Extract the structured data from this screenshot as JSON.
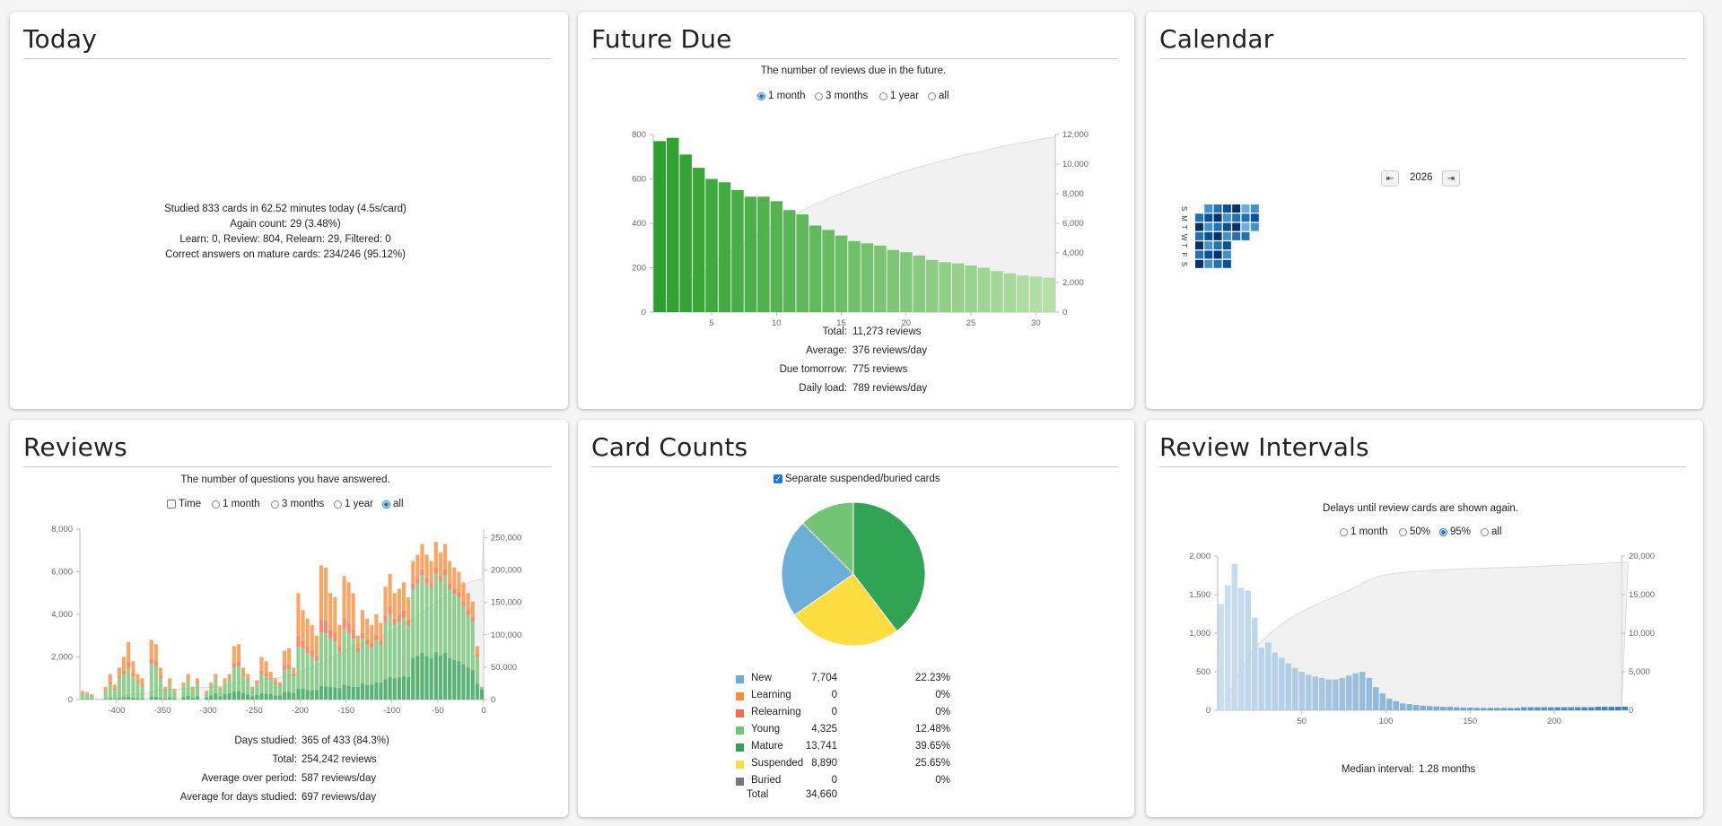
{
  "today": {
    "title": "Today",
    "lines": [
      "Studied 833 cards in 62.52 minutes today (4.5s/card)",
      "Again count: 29 (3.48%)",
      "Learn: 0, Review: 804, Relearn: 29, Filtered: 0",
      "Correct answers on mature cards: 234/246 (95.12%)"
    ]
  },
  "future_due": {
    "title": "Future Due",
    "subtitle": "The number of reviews due in the future.",
    "options": [
      "1 month",
      "3 months",
      "1 year",
      "all"
    ],
    "selected": 0,
    "stats": [
      {
        "label": "Total:",
        "value": "11,273 reviews"
      },
      {
        "label": "Average:",
        "value": "376 reviews/day"
      },
      {
        "label": "Due tomorrow:",
        "value": "775 reviews"
      },
      {
        "label": "Daily load:",
        "value": "789 reviews/day"
      }
    ]
  },
  "calendar": {
    "title": "Calendar",
    "year": "2026",
    "prev_icon": "arrow-left-bar",
    "next_icon": "arrow-right-bar",
    "weekday_labels": [
      "S",
      "M",
      "T",
      "W",
      "T",
      "F",
      "S"
    ]
  },
  "reviews": {
    "title": "Reviews",
    "subtitle": "The number of questions you have answered.",
    "time_label": "Time",
    "options": [
      "1 month",
      "3 months",
      "1 year",
      "all"
    ],
    "selected": 3,
    "stats": [
      {
        "label": "Days studied:",
        "value": "365 of 433 (84.3%)"
      },
      {
        "label": "Total:",
        "value": "254,242 reviews"
      },
      {
        "label": "Average over period:",
        "value": "587 reviews/day"
      },
      {
        "label": "Average for days studied:",
        "value": "697 reviews/day"
      }
    ]
  },
  "card_counts": {
    "title": "Card Counts",
    "checkbox_label": "Separate suspended/buried cards",
    "checked": true,
    "rows": [
      {
        "name": "New",
        "count": "7,704",
        "pct": "22.23%",
        "color": "#6baed6"
      },
      {
        "name": "Learning",
        "count": "0",
        "pct": "0%",
        "color": "#fd8d3c"
      },
      {
        "name": "Relearning",
        "count": "0",
        "pct": "0%",
        "color": "#fb6a4a"
      },
      {
        "name": "Young",
        "count": "4,325",
        "pct": "12.48%",
        "color": "#74c476"
      },
      {
        "name": "Mature",
        "count": "13,741",
        "pct": "39.65%",
        "color": "#31a354"
      },
      {
        "name": "Suspended",
        "count": "8,890",
        "pct": "25.65%",
        "color": "#fddd3f"
      },
      {
        "name": "Buried",
        "count": "0",
        "pct": "0%",
        "color": "#777777"
      }
    ],
    "total_label": "Total",
    "total_value": "34,660"
  },
  "review_intervals": {
    "title": "Review Intervals",
    "subtitle": "Delays until review cards are shown again.",
    "options": [
      "1 month",
      "50%",
      "95%",
      "all"
    ],
    "selected": 2,
    "median": {
      "label": "Median interval:",
      "value": "1.28 months"
    }
  },
  "chart_data": [
    {
      "id": "future_due",
      "type": "bar",
      "x": [
        1,
        2,
        3,
        4,
        5,
        6,
        7,
        8,
        9,
        10,
        11,
        12,
        13,
        14,
        15,
        16,
        17,
        18,
        19,
        20,
        21,
        22,
        23,
        24,
        25,
        26,
        27,
        28,
        29,
        30,
        31
      ],
      "values": [
        770,
        785,
        710,
        650,
        600,
        585,
        550,
        520,
        520,
        500,
        460,
        440,
        390,
        370,
        345,
        320,
        310,
        300,
        280,
        270,
        255,
        235,
        225,
        220,
        210,
        200,
        185,
        175,
        165,
        160,
        155
      ],
      "cumulative_ylim": [
        0,
        12000
      ],
      "xticks": [
        5,
        10,
        15,
        20,
        25,
        30
      ],
      "yticks": [
        0,
        200,
        400,
        600,
        800
      ],
      "y2ticks": [
        "0",
        "2,000",
        "4,000",
        "6,000",
        "8,000",
        "10,000",
        "12,000"
      ],
      "ylim": [
        0,
        800
      ],
      "color_start": "#2ca02c",
      "color_end": "#b5e0a8"
    },
    {
      "id": "reviews",
      "type": "bar",
      "stacked": true,
      "series_colors": {
        "mature": "#31a354",
        "young": "#74c476",
        "learn": "#fd8d3c",
        "relearn": "#fb6a4a"
      },
      "xlim": [
        -440,
        0
      ],
      "xticks": [
        -400,
        -350,
        -300,
        -250,
        -200,
        -150,
        -100,
        -50,
        0
      ],
      "yticks": [
        "0",
        "2,000",
        "4,000",
        "6,000",
        "8,000"
      ],
      "y2ticks": [
        "0",
        "50,000",
        "100,000",
        "150,000",
        "200,000",
        "250,000"
      ],
      "ylim": [
        0,
        8000
      ],
      "x": [
        -437,
        -432,
        -427,
        -422,
        -417,
        -412,
        -407,
        -402,
        -397,
        -392,
        -387,
        -382,
        -377,
        -372,
        -367,
        -362,
        -357,
        -352,
        -347,
        -342,
        -337,
        -332,
        -327,
        -322,
        -317,
        -312,
        -307,
        -302,
        -297,
        -292,
        -287,
        -282,
        -277,
        -272,
        -267,
        -262,
        -257,
        -252,
        -247,
        -242,
        -237,
        -232,
        -227,
        -222,
        -217,
        -212,
        -207,
        -202,
        -197,
        -192,
        -187,
        -182,
        -177,
        -172,
        -167,
        -162,
        -157,
        -152,
        -147,
        -142,
        -137,
        -132,
        -127,
        -122,
        -117,
        -112,
        -107,
        -102,
        -97,
        -92,
        -87,
        -82,
        -77,
        -72,
        -67,
        -62,
        -57,
        -52,
        -47,
        -42,
        -37,
        -32,
        -27,
        -22,
        -17,
        -12,
        -7,
        -2
      ],
      "totals": [
        400,
        350,
        250,
        0,
        0,
        600,
        1200,
        700,
        1500,
        2000,
        2700,
        1800,
        1200,
        1000,
        0,
        2800,
        2600,
        1500,
        600,
        1000,
        500,
        0,
        800,
        1200,
        600,
        1000,
        0,
        400,
        800,
        1200,
        600,
        1000,
        1200,
        2500,
        2600,
        1500,
        1200,
        600,
        900,
        2000,
        1800,
        1300,
        1000,
        800,
        2300,
        2400,
        1500,
        5000,
        4200,
        3800,
        3500,
        3000,
        6300,
        6200,
        5000,
        4800,
        3500,
        5800,
        5500,
        5000,
        3000,
        4200,
        3800,
        3500,
        4000,
        3600,
        5300,
        5900,
        5000,
        5200,
        5500,
        4800,
        6500,
        6800,
        7300,
        6800,
        6500,
        7400,
        6900,
        7300,
        6500,
        6200,
        6000,
        5500,
        5000,
        4600,
        2500,
        600
      ],
      "mature_frac": [
        0.05,
        0.05,
        0.05,
        0,
        0,
        0.05,
        0.05,
        0.05,
        0.05,
        0.05,
        0.05,
        0.05,
        0.05,
        0.05,
        0,
        0.05,
        0.05,
        0.05,
        0.1,
        0.1,
        0.1,
        0,
        0.15,
        0.15,
        0.15,
        0.15,
        0,
        0.25,
        0.25,
        0.25,
        0.25,
        0.25,
        0.25,
        0.15,
        0.15,
        0.2,
        0.2,
        0.25,
        0.25,
        0.15,
        0.15,
        0.2,
        0.2,
        0.25,
        0.15,
        0.15,
        0.2,
        0.1,
        0.12,
        0.12,
        0.12,
        0.15,
        0.1,
        0.1,
        0.12,
        0.12,
        0.15,
        0.12,
        0.12,
        0.12,
        0.2,
        0.18,
        0.18,
        0.2,
        0.2,
        0.22,
        0.18,
        0.18,
        0.2,
        0.2,
        0.2,
        0.22,
        0.3,
        0.3,
        0.3,
        0.3,
        0.3,
        0.3,
        0.3,
        0.3,
        0.3,
        0.3,
        0.3,
        0.3,
        0.3,
        0.3,
        0.3,
        0.8
      ],
      "young_frac": [
        0.7,
        0.7,
        0.7,
        0,
        0,
        0.6,
        0.55,
        0.6,
        0.6,
        0.55,
        0.5,
        0.55,
        0.6,
        0.6,
        0,
        0.55,
        0.55,
        0.6,
        0.6,
        0.6,
        0.6,
        0,
        0.6,
        0.6,
        0.6,
        0.6,
        0,
        0.55,
        0.55,
        0.55,
        0.55,
        0.55,
        0.55,
        0.45,
        0.45,
        0.55,
        0.55,
        0.55,
        0.55,
        0.45,
        0.45,
        0.55,
        0.55,
        0.55,
        0.45,
        0.45,
        0.55,
        0.4,
        0.45,
        0.45,
        0.45,
        0.45,
        0.4,
        0.4,
        0.45,
        0.45,
        0.5,
        0.45,
        0.45,
        0.45,
        0.55,
        0.5,
        0.5,
        0.5,
        0.5,
        0.5,
        0.5,
        0.5,
        0.5,
        0.5,
        0.5,
        0.5,
        0.5,
        0.5,
        0.5,
        0.5,
        0.5,
        0.5,
        0.5,
        0.5,
        0.5,
        0.5,
        0.5,
        0.5,
        0.5,
        0.5,
        0.5,
        0.15
      ],
      "cumulative_ylim": [
        0,
        260000
      ]
    },
    {
      "id": "card_counts",
      "type": "pie",
      "categories": [
        "Mature",
        "Suspended",
        "New",
        "Young"
      ],
      "values": [
        13741,
        8890,
        7704,
        4325
      ],
      "colors": [
        "#31a354",
        "#fddd3f",
        "#6baed6",
        "#74c476"
      ]
    },
    {
      "id": "review_intervals",
      "type": "bar",
      "xlim": [
        0,
        240
      ],
      "xticks": [
        50,
        100,
        150,
        200
      ],
      "yticks": [
        "0",
        "500",
        "1,000",
        "1,500",
        "2,000"
      ],
      "y2ticks": [
        "0",
        "5,000",
        "10,000",
        "15,000",
        "20,000"
      ],
      "ylim": [
        0,
        2000
      ],
      "values": [
        1380,
        1620,
        1900,
        1590,
        1550,
        1200,
        810,
        880,
        750,
        680,
        610,
        550,
        500,
        460,
        440,
        420,
        400,
        400,
        420,
        450,
        480,
        500,
        420,
        300,
        220,
        150,
        120,
        90,
        80,
        70,
        60,
        55,
        50,
        45,
        45,
        40,
        35,
        35,
        30,
        30,
        30,
        30,
        30,
        30,
        30,
        40,
        40,
        40,
        40,
        40,
        40,
        40,
        40,
        40,
        40,
        40,
        45,
        45,
        45,
        45,
        45
      ],
      "bin_width": 4,
      "cumulative_ylim": [
        0,
        20000
      ],
      "color_start": "#c6dbef",
      "color_end": "#2171b5"
    }
  ]
}
